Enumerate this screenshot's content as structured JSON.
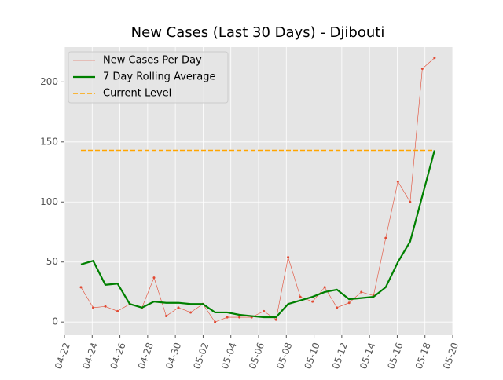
{
  "chart_data": {
    "type": "line",
    "title": "New Cases (Last 30 Days) - Djibouti",
    "x": [
      1.19,
      2.07,
      2.95,
      3.83,
      4.71,
      5.59,
      6.46,
      7.34,
      8.22,
      9.1,
      9.98,
      10.86,
      11.74,
      12.62,
      13.5,
      14.38,
      15.26,
      16.13,
      17.01,
      17.89,
      18.77,
      19.65,
      20.53,
      21.41,
      22.29,
      23.17,
      24.05,
      24.93,
      25.81,
      26.69
    ],
    "series": [
      {
        "name": "New Cases Per Day",
        "color": "#e24a33",
        "width": 0.6,
        "markers": true,
        "values": [
          29,
          12,
          13,
          9,
          15,
          12,
          37,
          5,
          12,
          8,
          15,
          0,
          4,
          4,
          4,
          9,
          2,
          54,
          21,
          17,
          29,
          12,
          16,
          25,
          22,
          70,
          117,
          100,
          211,
          220
        ]
      },
      {
        "name": "7 Day Rolling Average",
        "color": "#008000",
        "width": 2.2,
        "markers": false,
        "values": [
          48,
          51,
          31,
          32,
          15,
          12,
          17,
          16,
          16,
          15,
          15,
          8,
          8,
          6,
          5,
          4,
          4,
          15,
          18,
          21,
          25,
          27,
          19,
          20,
          21,
          29,
          50,
          67,
          105,
          143
        ]
      }
    ],
    "hline": {
      "name": "Current Level",
      "color": "#ffa500",
      "value": 143
    },
    "xlim": [
      0,
      28
    ],
    "xticks": [
      {
        "value": 0,
        "label": "04-22"
      },
      {
        "value": 2,
        "label": "04-24"
      },
      {
        "value": 4,
        "label": "04-26"
      },
      {
        "value": 6,
        "label": "04-28"
      },
      {
        "value": 8,
        "label": "04-30"
      },
      {
        "value": 10,
        "label": "05-02"
      },
      {
        "value": 12,
        "label": "05-04"
      },
      {
        "value": 14,
        "label": "05-06"
      },
      {
        "value": 16,
        "label": "05-08"
      },
      {
        "value": 18,
        "label": "05-10"
      },
      {
        "value": 20,
        "label": "05-12"
      },
      {
        "value": 22,
        "label": "05-14"
      },
      {
        "value": 24,
        "label": "05-16"
      },
      {
        "value": 26,
        "label": "05-18"
      },
      {
        "value": 28,
        "label": "05-20"
      }
    ],
    "ylim": [
      -11,
      229
    ],
    "yticks": [
      0,
      50,
      100,
      150,
      200
    ],
    "grid": true,
    "legend": "upper left"
  }
}
